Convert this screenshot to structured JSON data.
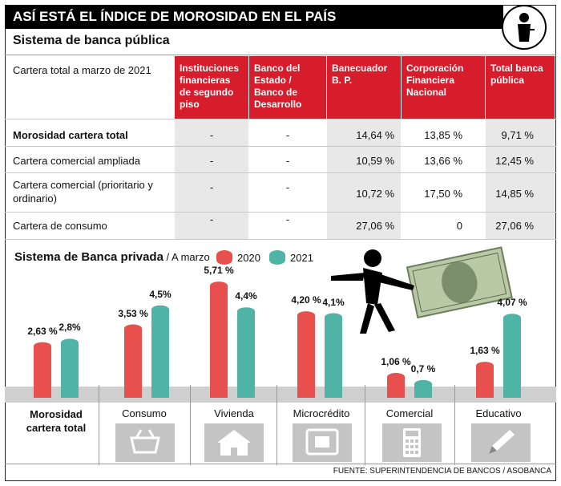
{
  "header": {
    "title": "ASÍ ESTÁ EL ÍNDICE DE MOROSIDAD EN EL PAÍS"
  },
  "public_bank": {
    "subtitle": "Sistema de banca pública",
    "corner_label": "Cartera total a marzo de 2021",
    "columns": [
      "Instituciones financieras de segundo piso",
      "Banco del Estado / Banco de Desarrollo",
      "Banecuador B. P.",
      "Corporación Financiera Nacional",
      "Total banca pública"
    ],
    "rows": [
      {
        "label": "Morosidad cartera total",
        "bold": true,
        "values": [
          "-",
          "-",
          "14,64 %",
          "13,85 %",
          "9,71 %"
        ]
      },
      {
        "label": "Cartera comercial ampliada",
        "bold": false,
        "values": [
          "-",
          "-",
          "10,59 %",
          "13,66 %",
          "12,45 %"
        ]
      },
      {
        "label": "Cartera comercial (prioritario y ordinario)",
        "bold": false,
        "values": [
          "-",
          "-",
          "10,72 %",
          "17,50 %",
          "14,85 %"
        ]
      },
      {
        "label": "Cartera de consumo",
        "bold": false,
        "values": [
          "-",
          "-",
          "27,06 %",
          "0",
          "27,06 %"
        ]
      }
    ]
  },
  "private_bank": {
    "title": "Sistema de Banca privada",
    "subtitle": " / A marzo"
  },
  "chart_data": {
    "type": "bar",
    "categories": [
      "Morosidad cartera total",
      "Consumo",
      "Vivienda",
      "Microcrédito",
      "Comercial",
      "Educativo"
    ],
    "series": [
      {
        "name": "2020",
        "values": [
          2.63,
          3.53,
          5.71,
          4.2,
          1.06,
          1.63
        ],
        "labels": [
          "2,63 %",
          "3,53 %",
          "5,71 %",
          "4,20 %",
          "1,06 %",
          "1,63 %"
        ]
      },
      {
        "name": "2021",
        "values": [
          2.8,
          4.5,
          4.4,
          4.1,
          0.7,
          4.07
        ],
        "labels": [
          "2,8%",
          "4,5%",
          "4,4%",
          "4,1%",
          "0,7 %",
          "4,07 %"
        ]
      }
    ],
    "colors": {
      "2020": "#e8504d",
      "2021": "#4fb3a6"
    },
    "ylim": [
      0,
      6
    ]
  },
  "icons": [
    "basket-icon",
    "house-icon",
    "atm-icon",
    "calculator-icon",
    "pencil-icon"
  ],
  "source": "FUENTE: SUPERINTENDENCIA DE BANCOS / ASOBANCA"
}
